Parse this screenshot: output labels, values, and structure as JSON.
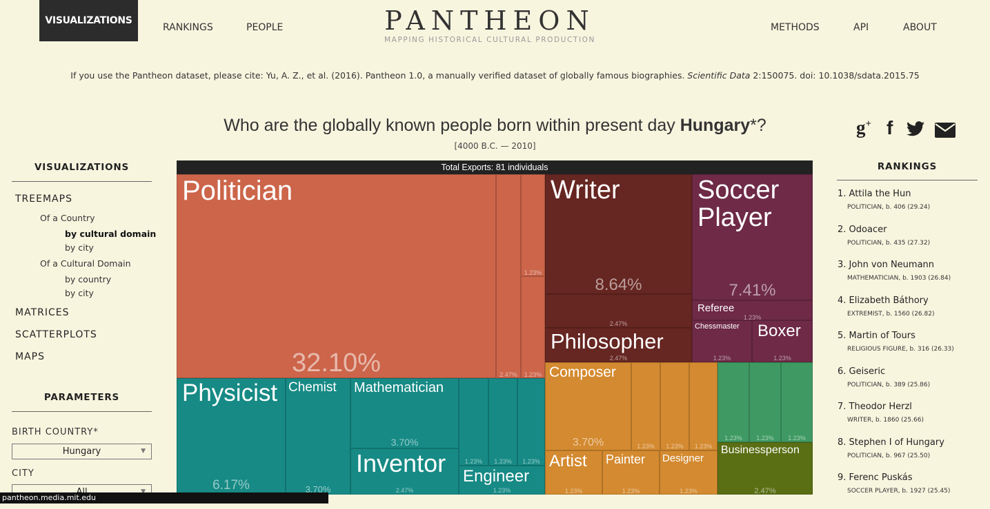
{
  "nav": {
    "visualizations": "VISUALIZATIONS",
    "rankings": "RANKINGS",
    "people": "PEOPLE",
    "methods": "METHODS",
    "api": "API",
    "about": "ABOUT"
  },
  "logo": {
    "title": "PANTHEON",
    "subtitle": "MAPPING HISTORICAL CULTURAL PRODUCTION"
  },
  "citation": {
    "before": "If you use the Pantheon dataset, please cite: Yu, A. Z., et al. (2016). Pantheon 1.0, a manually verified dataset of globally famous biographies. ",
    "journal": "Scientific Data",
    "after": " 2:150075. doi: 10.1038/sdata.2015.75"
  },
  "headline": {
    "prefix": "Who are the globally known people born within present day ",
    "country": "Hungary",
    "suffix": "*?",
    "date_range": "[4000 B.C. — 2010]"
  },
  "share": {
    "google": "g+",
    "facebook": "f",
    "twitter": "t",
    "email": "email"
  },
  "sidebar": {
    "heading": "VISUALIZATIONS",
    "treemaps": "TREEMAPS",
    "of_country": "Of a Country",
    "by_cultural_domain": "by cultural domain",
    "by_city": "by city",
    "of_cultural_domain": "Of a Cultural Domain",
    "by_country": "by country",
    "by_city2": "by city",
    "matrices": "MATRICES",
    "scatterplots": "SCATTERPLOTS",
    "maps": "MAPS",
    "parameters": "PARAMETERS",
    "birth_country_label": "BIRTH COUNTRY*",
    "birth_country_value": "Hungary",
    "city_label": "CITY",
    "city_value": "All"
  },
  "treemap": {
    "header": "Total Exports: 81 individuals",
    "cells": {
      "politician": {
        "label": "Politician",
        "pct": "32.10%"
      },
      "pol_small_a": "2.47%",
      "pol_small_b": "1.23%",
      "pol_small_c": "1.23%",
      "writer": {
        "label": "Writer",
        "pct": "8.64%"
      },
      "writer_small": "2.47%",
      "philosopher": {
        "label": "Philosopher",
        "pct": "2.47%"
      },
      "soccer": {
        "label": "Soccer Player",
        "pct": "7.41%"
      },
      "referee": {
        "label": "Referee",
        "pct": "1.23%"
      },
      "chessmaster": {
        "label": "Chessmaster",
        "pct": "1.23%"
      },
      "boxer": {
        "label": "Boxer",
        "pct": "1.23%"
      },
      "physicist": {
        "label": "Physicist",
        "pct": "6.17%"
      },
      "chemist": {
        "label": "Chemist",
        "pct": "3.70%"
      },
      "mathematician": {
        "label": "Mathematician",
        "pct": "3.70%"
      },
      "inventor": {
        "label": "Inventor",
        "pct": "2.47%"
      },
      "sci_small_a": "1.23%",
      "sci_small_b": "1.23%",
      "sci_small_c": "1.23%",
      "engineer": {
        "label": "Engineer",
        "pct": "1.23%"
      },
      "composer": {
        "label": "Composer",
        "pct": "3.70%"
      },
      "mus_a": "1.23%",
      "mus_b": "1.23%",
      "mus_c": "1.23%",
      "artist": {
        "label": "Artist",
        "pct": "1.23%"
      },
      "painter": {
        "label": "Painter",
        "pct": "1.23%"
      },
      "designer": {
        "label": "Designer",
        "pct": "1.23%"
      },
      "green_a": "1.23%",
      "green_b": "1.23%",
      "green_c": "1.23%",
      "businessperson": {
        "label": "Businessperson",
        "pct": "2.47%"
      }
    },
    "colors": {
      "politician": "#cc654a",
      "writer": "#662621",
      "soccer": "#6e2a47",
      "science": "#178a85",
      "music": "#d48a30",
      "sport_green": "#3e9a62",
      "business": "#5a6e14"
    }
  },
  "rankings": {
    "heading": "RANKINGS",
    "items": [
      {
        "name": "1. Attila the Hun",
        "meta": "POLITICIAN, b. 406 (29.24)"
      },
      {
        "name": "2. Odoacer",
        "meta": "POLITICIAN, b. 435 (27.32)"
      },
      {
        "name": "3. John von Neumann",
        "meta": "MATHEMATICIAN, b. 1903 (26.84)"
      },
      {
        "name": "4. Elizabeth Báthory",
        "meta": "EXTREMIST, b. 1560 (26.82)"
      },
      {
        "name": "5. Martin of Tours",
        "meta": "RELIGIOUS FIGURE, b. 316 (26.33)"
      },
      {
        "name": "6. Geiseric",
        "meta": "POLITICIAN, b. 389 (25.86)"
      },
      {
        "name": "7. Theodor Herzl",
        "meta": "WRITER, b. 1860 (25.66)"
      },
      {
        "name": "8. Stephen I of Hungary",
        "meta": "POLITICIAN, b. 967 (25.50)"
      },
      {
        "name": "9. Ferenc Puskás",
        "meta": "SOCCER PLAYER, b. 1927 (25.45)"
      }
    ]
  },
  "status_bar": "pantheon.media.mit.edu"
}
